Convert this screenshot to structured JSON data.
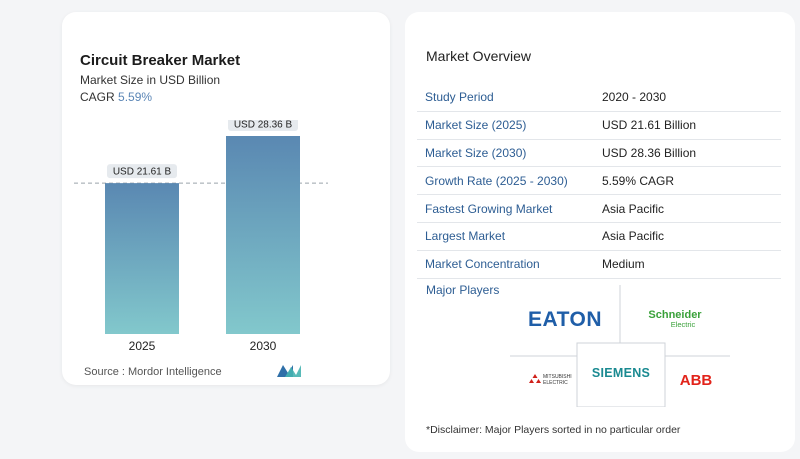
{
  "chart_data": {
    "type": "bar",
    "title": "Circuit Breaker Market",
    "subtitle": "Market Size in USD Billion",
    "cagr_label": "CAGR",
    "cagr_value": "5.59%",
    "categories": [
      "2025",
      "2030"
    ],
    "values": [
      21.61,
      28.36
    ],
    "data_labels": [
      "USD 21.61 B",
      "USD 28.36 B"
    ],
    "ylim": [
      0,
      30
    ],
    "colors": {
      "bar_top": "#5a88b2",
      "bar_bottom": "#82c8cc"
    }
  },
  "source": "Source :  Mordor Intelligence",
  "overview": {
    "title": "Market Overview",
    "rows": [
      {
        "label": "Study Period",
        "value": "2020 - 2030"
      },
      {
        "label": "Market Size (2025)",
        "value": "USD 21.61 Billion"
      },
      {
        "label": "Market Size (2030)",
        "value": "USD 28.36 Billion"
      },
      {
        "label": "Growth Rate (2025 - 2030)",
        "value": "5.59% CAGR"
      },
      {
        "label": "Fastest Growing Market",
        "value": "Asia Pacific"
      },
      {
        "label": "Largest Market",
        "value": "Asia Pacific"
      },
      {
        "label": "Market Concentration",
        "value": "Medium"
      }
    ]
  },
  "players": {
    "title": "Major Players",
    "logos": {
      "eaton": "EATON",
      "schneider_1": "Schneider",
      "schneider_2": "Electric",
      "siemens": "SIEMENS",
      "mitsubishi_1": "MITSUBISHI",
      "mitsubishi_2": "ELECTRIC",
      "abb": "ABB"
    }
  },
  "disclaimer": "*Disclaimer: Major Players sorted in no particular order"
}
